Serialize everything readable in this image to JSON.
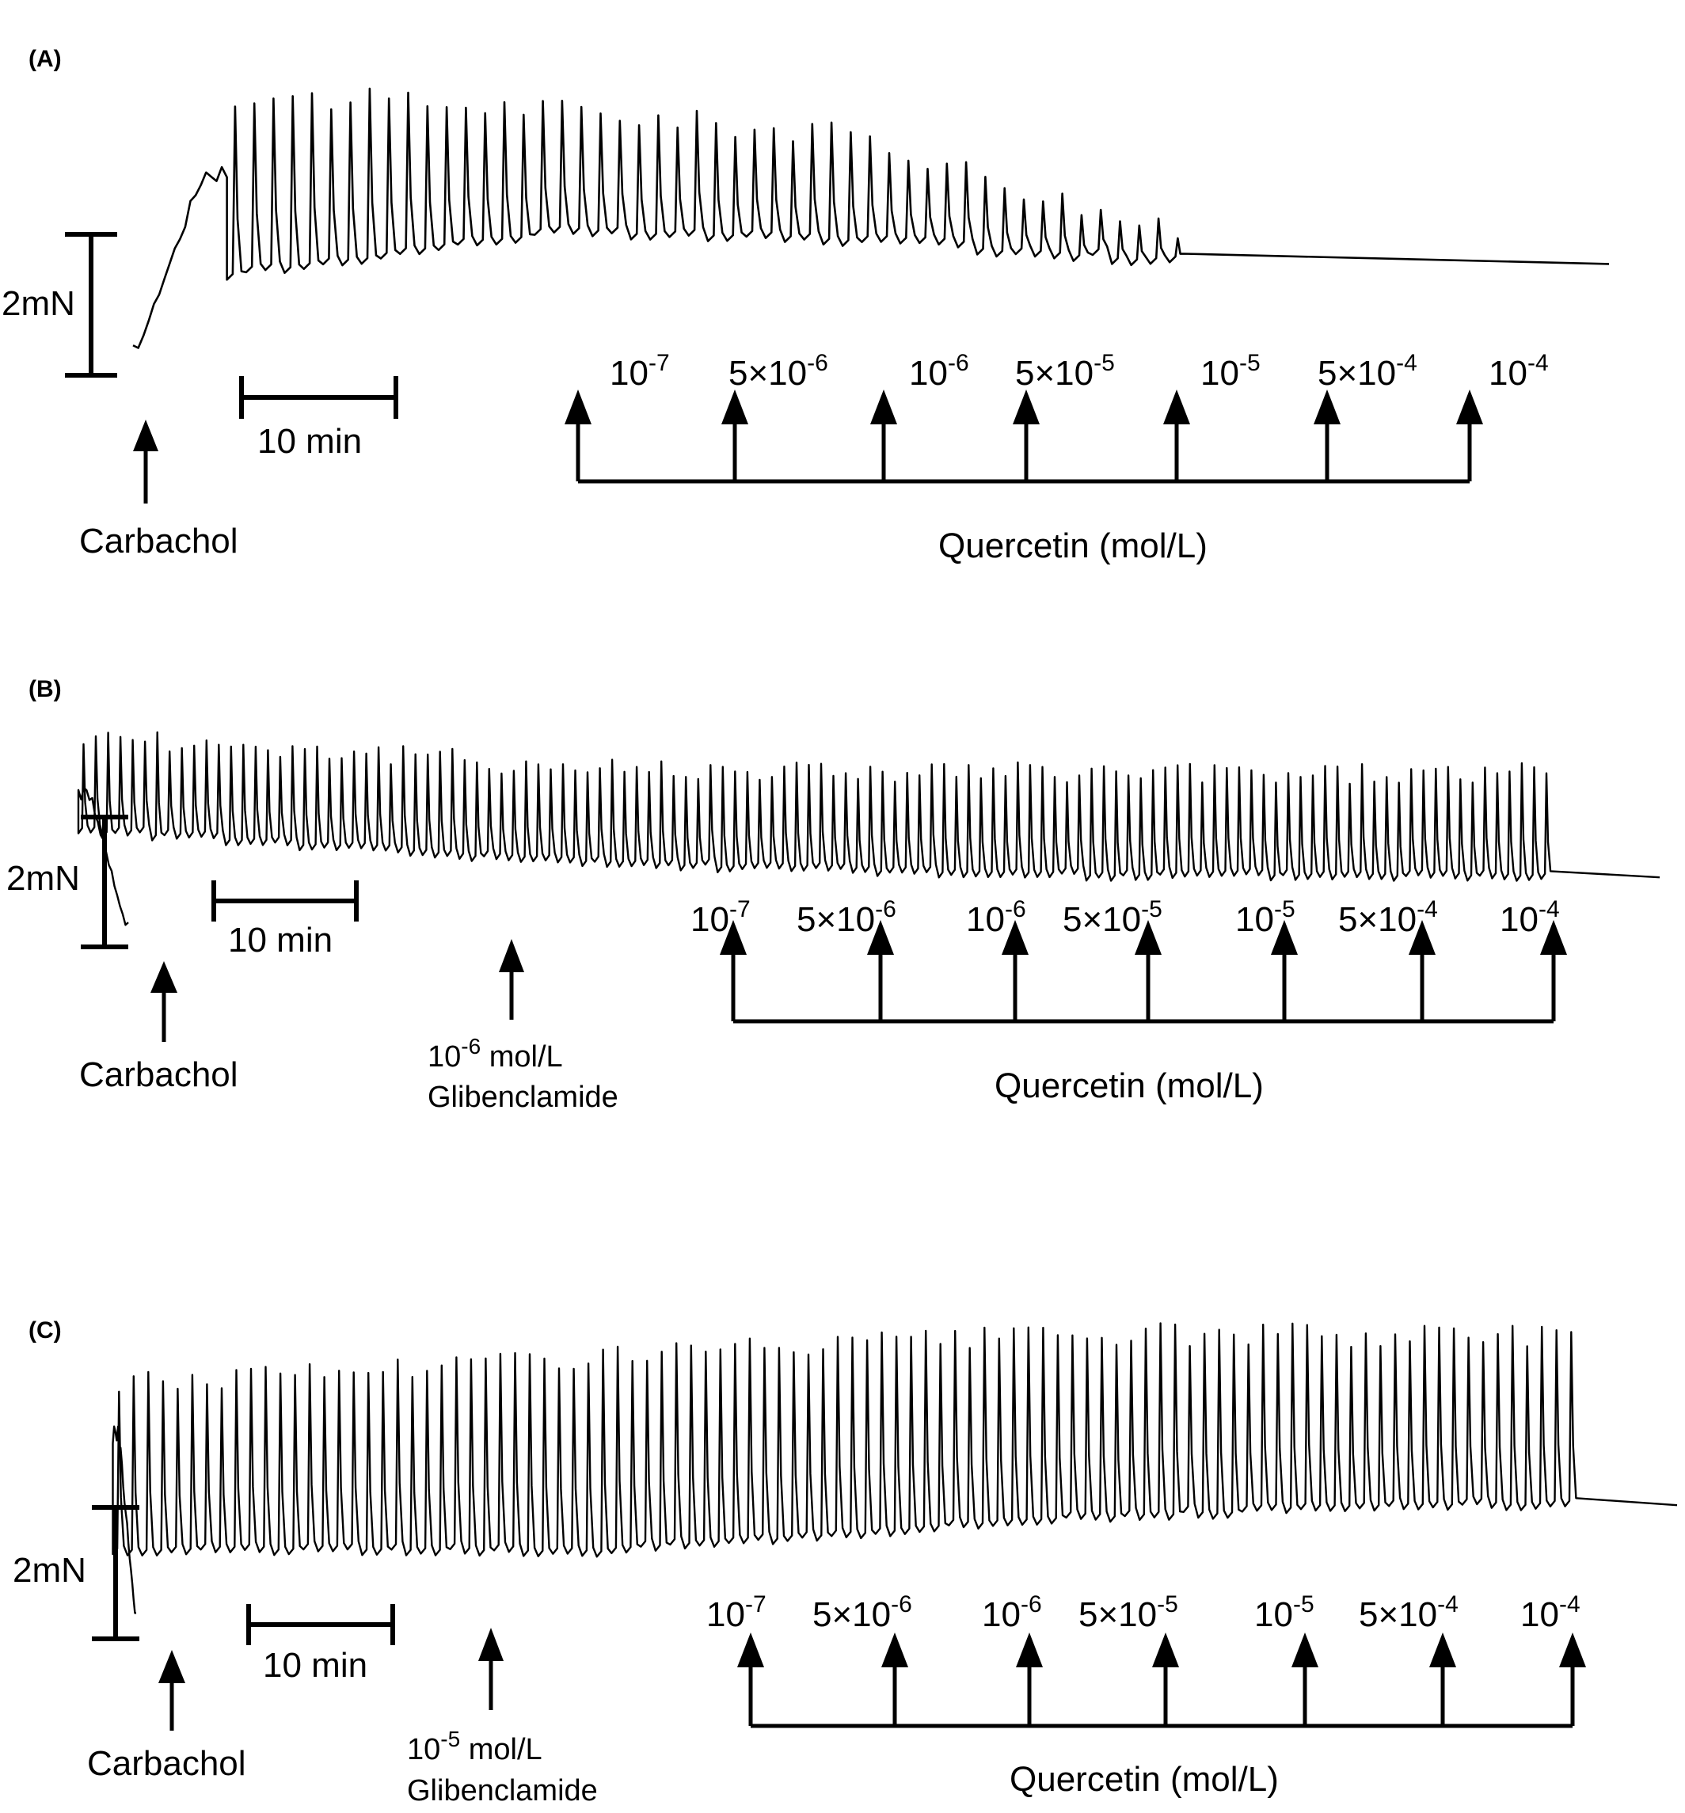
{
  "colors": {
    "trace": "#000000",
    "background": "#ffffff"
  },
  "chart_data": [
    {
      "type": "line",
      "panel_label": "(A)",
      "force_scale_label": "2mN",
      "time_scale_label": "10 min",
      "carbachol_label": "Carbachol",
      "quercetin_label": "Quercetin (mol/L)",
      "concentrations": [
        {
          "base": "10",
          "exp": "-7"
        },
        {
          "base": "5×10",
          "exp": "-6"
        },
        {
          "base": "10",
          "exp": "-6"
        },
        {
          "base": "5×10",
          "exp": "-5"
        },
        {
          "base": "10",
          "exp": "-5"
        },
        {
          "base": "5×10",
          "exp": "-4"
        },
        {
          "base": "10",
          "exp": "-4"
        }
      ],
      "trace": {
        "n_contractions": 50,
        "start_min": 14.7,
        "end_min": 77,
        "baseline_mN": [
          1.2,
          1.8,
          1.7,
          1.4
        ],
        "peak_mN": [
          3.8,
          3.6,
          3.2,
          1.8
        ],
        "onset_peak_mN": 3.6
      }
    },
    {
      "type": "line",
      "panel_label": "(B)",
      "force_scale_label": "2mN",
      "time_scale_label": "10 min",
      "carbachol_label": "Carbachol",
      "glibenclamide_conc_base": "10",
      "glibenclamide_conc_exp": "-6",
      "glibenclamide_unit": " mol/L",
      "glibenclamide_label": "Glibenclamide",
      "quercetin_label": "Quercetin (mol/L)",
      "concentrations": [
        {
          "base": "10",
          "exp": "-7"
        },
        {
          "base": "5×10",
          "exp": "-6"
        },
        {
          "base": "10",
          "exp": "-6"
        },
        {
          "base": "5×10",
          "exp": "-5"
        },
        {
          "base": "10",
          "exp": "-5"
        },
        {
          "base": "5×10",
          "exp": "-4"
        },
        {
          "base": "10",
          "exp": "-4"
        }
      ],
      "trace": {
        "n_contractions": 120,
        "start_min": 5.5,
        "end_min": 109,
        "baseline_mN": [
          1.6,
          1.1,
          0.9,
          0.9
        ],
        "peak_mN": [
          3.1,
          2.6,
          2.5,
          2.5
        ],
        "onset_peak_mN": 2.9
      }
    },
    {
      "type": "line",
      "panel_label": "(C)",
      "force_scale_label": "2mN",
      "time_scale_label": "10 min",
      "carbachol_label": "Carbachol",
      "glibenclamide_conc_base": "10",
      "glibenclamide_conc_exp": "-5",
      "glibenclamide_unit": " mol/L",
      "glibenclamide_label": "Glibenclamide",
      "quercetin_label": "Quercetin (mol/L)",
      "concentrations": [
        {
          "base": "10",
          "exp": "-7"
        },
        {
          "base": "5×10",
          "exp": "-6"
        },
        {
          "base": "10",
          "exp": "-6"
        },
        {
          "base": "5×10",
          "exp": "-5"
        },
        {
          "base": "10",
          "exp": "-5"
        },
        {
          "base": "5×10",
          "exp": "-4"
        },
        {
          "base": "10",
          "exp": "-4"
        }
      ],
      "trace": {
        "n_contractions": 100,
        "start_min": 7.5,
        "end_min": 105,
        "baseline_mN": [
          1.1,
          1.1,
          1.6,
          1.8
        ],
        "peak_mN": [
          3.6,
          4.0,
          4.3,
          4.3
        ],
        "onset_peak_mN": 3.8
      }
    }
  ]
}
